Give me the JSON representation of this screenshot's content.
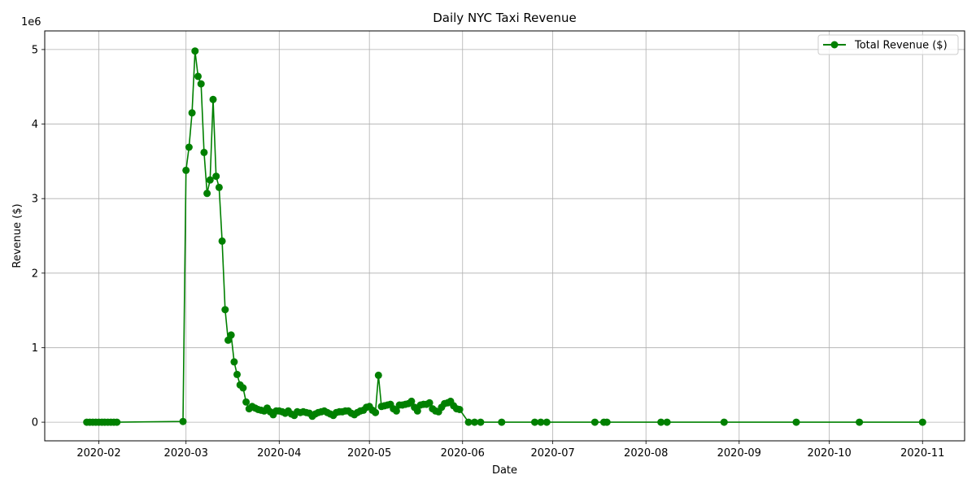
{
  "chart_data": {
    "type": "line",
    "title": "Daily NYC Taxi Revenue",
    "xlabel": "Date",
    "ylabel": "Revenue ($)",
    "y_offset_label": "1e6",
    "grid": true,
    "legend_position": "top-right",
    "x_range": [
      "2020-01-14",
      "2020-11-15"
    ],
    "ylim": [
      -250000,
      5250000
    ],
    "x_ticks": [
      "2020-02-01",
      "2020-03-01",
      "2020-04-01",
      "2020-05-01",
      "2020-06-01",
      "2020-07-01",
      "2020-08-01",
      "2020-09-01",
      "2020-10-01",
      "2020-11-01"
    ],
    "x_tick_labels": [
      "2020-02",
      "2020-03",
      "2020-04",
      "2020-05",
      "2020-06",
      "2020-07",
      "2020-08",
      "2020-09",
      "2020-10",
      "2020-11"
    ],
    "y_ticks": [
      0,
      1000000,
      2000000,
      3000000,
      4000000,
      5000000
    ],
    "y_tick_labels": [
      "0",
      "1",
      "2",
      "3",
      "4",
      "5"
    ],
    "series": [
      {
        "name": "Total Revenue ($)",
        "color": "#008000",
        "marker": "circle",
        "points": [
          [
            "2020-01-28",
            0
          ],
          [
            "2020-01-29",
            0
          ],
          [
            "2020-01-30",
            0
          ],
          [
            "2020-01-31",
            0
          ],
          [
            "2020-02-01",
            0
          ],
          [
            "2020-02-02",
            0
          ],
          [
            "2020-02-03",
            0
          ],
          [
            "2020-02-04",
            0
          ],
          [
            "2020-02-05",
            0
          ],
          [
            "2020-02-06",
            0
          ],
          [
            "2020-02-07",
            0
          ],
          [
            "2020-02-29",
            10000
          ],
          [
            "2020-03-01",
            3380000
          ],
          [
            "2020-03-02",
            3690000
          ],
          [
            "2020-03-03",
            4150000
          ],
          [
            "2020-03-04",
            4980000
          ],
          [
            "2020-03-05",
            4640000
          ],
          [
            "2020-03-06",
            4540000
          ],
          [
            "2020-03-07",
            3620000
          ],
          [
            "2020-03-08",
            3070000
          ],
          [
            "2020-03-09",
            3250000
          ],
          [
            "2020-03-10",
            4330000
          ],
          [
            "2020-03-11",
            3300000
          ],
          [
            "2020-03-12",
            3150000
          ],
          [
            "2020-03-13",
            2430000
          ],
          [
            "2020-03-14",
            1510000
          ],
          [
            "2020-03-15",
            1100000
          ],
          [
            "2020-03-16",
            1170000
          ],
          [
            "2020-03-17",
            810000
          ],
          [
            "2020-03-18",
            640000
          ],
          [
            "2020-03-19",
            500000
          ],
          [
            "2020-03-20",
            460000
          ],
          [
            "2020-03-21",
            270000
          ],
          [
            "2020-03-22",
            180000
          ],
          [
            "2020-03-23",
            210000
          ],
          [
            "2020-03-24",
            190000
          ],
          [
            "2020-03-25",
            170000
          ],
          [
            "2020-03-26",
            160000
          ],
          [
            "2020-03-27",
            150000
          ],
          [
            "2020-03-28",
            190000
          ],
          [
            "2020-03-29",
            140000
          ],
          [
            "2020-03-30",
            100000
          ],
          [
            "2020-03-31",
            150000
          ],
          [
            "2020-04-01",
            150000
          ],
          [
            "2020-04-02",
            140000
          ],
          [
            "2020-04-03",
            120000
          ],
          [
            "2020-04-04",
            150000
          ],
          [
            "2020-04-05",
            110000
          ],
          [
            "2020-04-06",
            90000
          ],
          [
            "2020-04-07",
            140000
          ],
          [
            "2020-04-08",
            130000
          ],
          [
            "2020-04-09",
            140000
          ],
          [
            "2020-04-10",
            130000
          ],
          [
            "2020-04-11",
            120000
          ],
          [
            "2020-04-12",
            80000
          ],
          [
            "2020-04-13",
            110000
          ],
          [
            "2020-04-14",
            130000
          ],
          [
            "2020-04-15",
            140000
          ],
          [
            "2020-04-16",
            150000
          ],
          [
            "2020-04-17",
            130000
          ],
          [
            "2020-04-18",
            110000
          ],
          [
            "2020-04-19",
            90000
          ],
          [
            "2020-04-20",
            130000
          ],
          [
            "2020-04-21",
            140000
          ],
          [
            "2020-04-22",
            140000
          ],
          [
            "2020-04-23",
            150000
          ],
          [
            "2020-04-24",
            150000
          ],
          [
            "2020-04-25",
            120000
          ],
          [
            "2020-04-26",
            100000
          ],
          [
            "2020-04-27",
            130000
          ],
          [
            "2020-04-28",
            150000
          ],
          [
            "2020-04-29",
            160000
          ],
          [
            "2020-04-30",
            200000
          ],
          [
            "2020-05-01",
            210000
          ],
          [
            "2020-05-02",
            160000
          ],
          [
            "2020-05-03",
            130000
          ],
          [
            "2020-05-04",
            630000
          ],
          [
            "2020-05-05",
            210000
          ],
          [
            "2020-05-06",
            220000
          ],
          [
            "2020-05-07",
            230000
          ],
          [
            "2020-05-08",
            240000
          ],
          [
            "2020-05-09",
            180000
          ],
          [
            "2020-05-10",
            150000
          ],
          [
            "2020-05-11",
            230000
          ],
          [
            "2020-05-12",
            230000
          ],
          [
            "2020-05-13",
            240000
          ],
          [
            "2020-05-14",
            250000
          ],
          [
            "2020-05-15",
            280000
          ],
          [
            "2020-05-16",
            200000
          ],
          [
            "2020-05-17",
            150000
          ],
          [
            "2020-05-18",
            230000
          ],
          [
            "2020-05-19",
            240000
          ],
          [
            "2020-05-20",
            240000
          ],
          [
            "2020-05-21",
            260000
          ],
          [
            "2020-05-22",
            180000
          ],
          [
            "2020-05-23",
            150000
          ],
          [
            "2020-05-24",
            140000
          ],
          [
            "2020-05-25",
            200000
          ],
          [
            "2020-05-26",
            250000
          ],
          [
            "2020-05-27",
            260000
          ],
          [
            "2020-05-28",
            280000
          ],
          [
            "2020-05-29",
            220000
          ],
          [
            "2020-05-30",
            180000
          ],
          [
            "2020-05-31",
            170000
          ],
          [
            "2020-06-03",
            0
          ],
          [
            "2020-06-05",
            0
          ],
          [
            "2020-06-07",
            0
          ],
          [
            "2020-06-14",
            0
          ],
          [
            "2020-06-25",
            0
          ],
          [
            "2020-06-27",
            0
          ],
          [
            "2020-06-29",
            0
          ],
          [
            "2020-07-15",
            0
          ],
          [
            "2020-07-18",
            0
          ],
          [
            "2020-07-19",
            0
          ],
          [
            "2020-08-06",
            0
          ],
          [
            "2020-08-08",
            0
          ],
          [
            "2020-08-27",
            0
          ],
          [
            "2020-09-20",
            0
          ],
          [
            "2020-10-11",
            0
          ],
          [
            "2020-11-01",
            0
          ]
        ]
      }
    ]
  }
}
